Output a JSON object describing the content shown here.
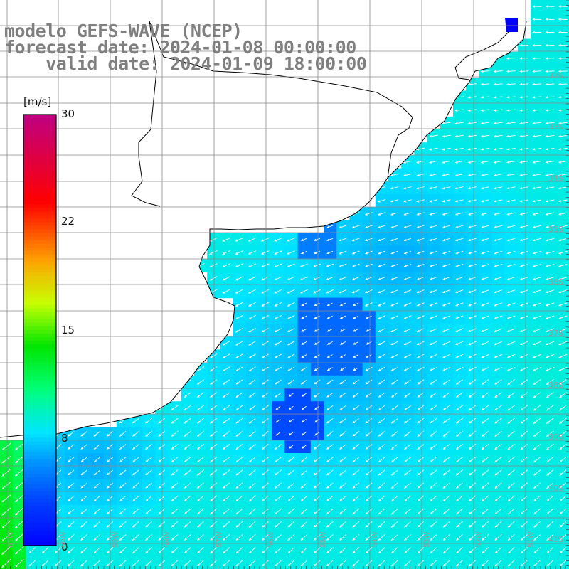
{
  "title": {
    "model": "modelo GEFS-WAVE (NCEP)",
    "forecast": "forecast date: 2024-01-08 00:00:00",
    "valid": "    valid date: 2024-01-09 18:00:00"
  },
  "colorbar": {
    "unit": "[m/s]",
    "min": 0,
    "max": 30,
    "ticks": [
      "30",
      "22",
      "15",
      "8",
      "0"
    ],
    "tick_values": [
      30,
      22,
      15,
      8,
      0
    ],
    "colors": [
      "#0000ff",
      "#0050ff",
      "#00a0ff",
      "#00ffff",
      "#00ff80",
      "#00ff00",
      "#80ff00",
      "#ffff00",
      "#ffa000",
      "#ff5000",
      "#ff0000",
      "#e00050",
      "#c00080"
    ]
  },
  "map": {
    "variable": "wind speed and direction (10 m)",
    "lat_range": [
      -41.5,
      -31
    ],
    "lon_range": [
      -61,
      -50
    ],
    "lat_labels": [
      "32S",
      "33S",
      "34S",
      "35S",
      "36S",
      "37S",
      "38S",
      "39S",
      "40S",
      "41S"
    ],
    "lon_labels": [
      "61W",
      "60W",
      "59W",
      "58W",
      "57W",
      "56W",
      "55W",
      "54W",
      "53W",
      "52W",
      "51W"
    ],
    "land_color": "#ffffff",
    "grid_color": "#8a8a8a",
    "arrow_color": "#ffffff"
  }
}
